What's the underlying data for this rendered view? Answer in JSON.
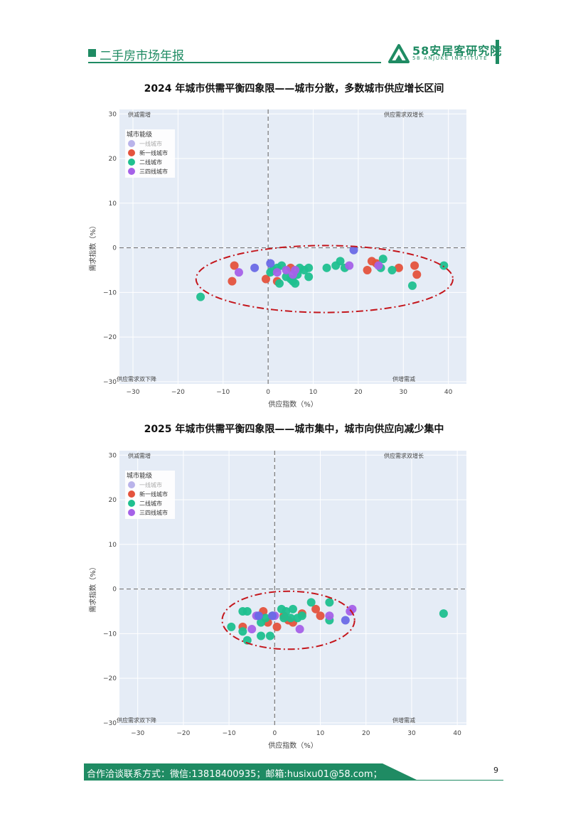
{
  "header": {
    "title": "二手房市场年报",
    "logo_main": "58安居客研究院",
    "logo_sub": "58 ANJUKE INSTITUTE"
  },
  "footer": {
    "contact": "合作洽谈联系方式：微信:13818400935；邮箱:husixu01@58.com；",
    "page_number": "9"
  },
  "colors": {
    "brand": "#1f8b63",
    "plot_bg": "#e5ecf6",
    "tier1": "#b9b3ea",
    "new_tier1": "#e4533d",
    "tier2": "#1fc08f",
    "tier34": "#a561e8",
    "highlight": "#6a6ae6",
    "ellipse": "#c4161c"
  },
  "chart_data": [
    {
      "type": "scatter",
      "title": "2024 年城市供需平衡四象限——城市分散，多数城市供应增长区间",
      "xlabel": "供应指数（%）",
      "ylabel": "需求指数（%）",
      "xlim": [
        -33,
        44
      ],
      "ylim": [
        -30.5,
        31
      ],
      "xticks": [
        -30,
        -20,
        -10,
        0,
        10,
        20,
        30,
        40
      ],
      "yticks": [
        -30,
        -20,
        -10,
        0,
        10,
        20,
        30
      ],
      "grid": true,
      "legend_title": "城市能级",
      "legend_position": "top-left",
      "quadrant_labels": {
        "top_left": "供减需增",
        "top_right": "供应需求双增长",
        "bottom_left": "供应需求双下降",
        "bottom_right": "供增需减"
      },
      "ellipse": {
        "cx": 12.5,
        "cy": -7,
        "rx": 28.5,
        "ry": 7.5
      },
      "series": [
        {
          "name": "一线城市",
          "color": "#b9b3ea",
          "points": []
        },
        {
          "name": "新一线城市",
          "color": "#e4533d",
          "points": [
            [
              -7.5,
              -4
            ],
            [
              -8,
              -7.5
            ],
            [
              -0.5,
              -7
            ],
            [
              2,
              -7.5
            ],
            [
              5,
              -4.5
            ],
            [
              22,
              -5
            ],
            [
              23,
              -3
            ],
            [
              24,
              -3.5
            ],
            [
              29,
              -4.5
            ],
            [
              32.5,
              -4
            ],
            [
              33,
              -6
            ]
          ]
        },
        {
          "name": "二线城市",
          "color": "#1fc08f",
          "points": [
            [
              -15,
              -11
            ],
            [
              0.5,
              -5.5
            ],
            [
              1,
              -5
            ],
            [
              2,
              -4.5
            ],
            [
              2.5,
              -8
            ],
            [
              3,
              -4
            ],
            [
              4,
              -6.5
            ],
            [
              5,
              -7
            ],
            [
              5.5,
              -7.5
            ],
            [
              6,
              -8
            ],
            [
              6.5,
              -6
            ],
            [
              7,
              -4.5
            ],
            [
              8,
              -5
            ],
            [
              9,
              -4.5
            ],
            [
              9,
              -6.5
            ],
            [
              13,
              -4.5
            ],
            [
              15,
              -4
            ],
            [
              16,
              -3
            ],
            [
              17,
              -4.5
            ],
            [
              25,
              -4.5
            ],
            [
              25.5,
              -2.5
            ],
            [
              27.5,
              -5
            ],
            [
              32,
              -8.5
            ],
            [
              39,
              -4
            ]
          ]
        },
        {
          "name": "三四线城市",
          "color": "#a561e8",
          "points": [
            [
              -6.5,
              -5.5
            ],
            [
              2,
              -5.5
            ],
            [
              4,
              -5
            ],
            [
              5.5,
              -6
            ],
            [
              6,
              -5
            ],
            [
              18,
              -4
            ],
            [
              24.5,
              -4
            ]
          ]
        },
        {
          "name": "",
          "color": "#6a6ae6",
          "points": [
            [
              -3,
              -4.5
            ],
            [
              0.5,
              -3.5
            ],
            [
              19,
              -0.5
            ]
          ]
        }
      ]
    },
    {
      "type": "scatter",
      "title": "2025 年城市供需平衡四象限——城市集中，城市向供应向减少集中",
      "xlabel": "供应指数（%）",
      "ylabel": "需求指数（%）",
      "xlim": [
        -34,
        42
      ],
      "ylim": [
        -30.5,
        31
      ],
      "xticks": [
        -30,
        -20,
        -10,
        0,
        10,
        20,
        30,
        40
      ],
      "yticks": [
        -30,
        -20,
        -10,
        0,
        10,
        20,
        30
      ],
      "grid": true,
      "legend_title": "城市能级",
      "legend_position": "top-left",
      "quadrant_labels": {
        "top_left": "供减需增",
        "top_right": "供应需求双增长",
        "bottom_left": "供应需求双下降",
        "bottom_right": "供增需减"
      },
      "ellipse": {
        "cx": 3,
        "cy": -7,
        "rx": 14.5,
        "ry": 6.5
      },
      "series": [
        {
          "name": "一线城市",
          "color": "#b9b3ea",
          "points": []
        },
        {
          "name": "新一线城市",
          "color": "#e4533d",
          "points": [
            [
              -7,
              -8.5
            ],
            [
              -2.5,
              -5
            ],
            [
              -1.5,
              -7.5
            ],
            [
              0.5,
              -8.5
            ],
            [
              2,
              -6
            ],
            [
              3,
              -7
            ],
            [
              4,
              -7.5
            ],
            [
              6,
              -5.5
            ],
            [
              9,
              -4.5
            ],
            [
              10,
              -6
            ]
          ]
        },
        {
          "name": "二线城市",
          "color": "#1fc08f",
          "points": [
            [
              -9.5,
              -8.5
            ],
            [
              -7,
              -5
            ],
            [
              -7,
              -9.5
            ],
            [
              -6,
              -5
            ],
            [
              -6,
              -11.5
            ],
            [
              -3,
              -10.5
            ],
            [
              -3,
              -7.5
            ],
            [
              -2,
              -6.5
            ],
            [
              -1,
              -10.5
            ],
            [
              -0.5,
              -6
            ],
            [
              1.5,
              -4.5
            ],
            [
              2,
              -6.5
            ],
            [
              2.5,
              -5
            ],
            [
              3.5,
              -6.5
            ],
            [
              4,
              -4.5
            ],
            [
              5,
              -6.5
            ],
            [
              6,
              -6
            ],
            [
              8,
              -3
            ],
            [
              12,
              -3
            ],
            [
              12,
              -7
            ],
            [
              37,
              -5.5
            ]
          ]
        },
        {
          "name": "三四线城市",
          "color": "#a561e8",
          "points": [
            [
              -5,
              -9
            ],
            [
              -4,
              -6
            ],
            [
              0,
              -6
            ],
            [
              5.5,
              -9
            ],
            [
              12,
              -6
            ],
            [
              16.5,
              -5
            ],
            [
              17,
              -4.5
            ]
          ]
        },
        {
          "name": "",
          "color": "#6a6ae6",
          "points": [
            [
              -3.5,
              -6
            ],
            [
              -0.5,
              -6
            ],
            [
              15.5,
              -7
            ]
          ]
        }
      ]
    }
  ]
}
